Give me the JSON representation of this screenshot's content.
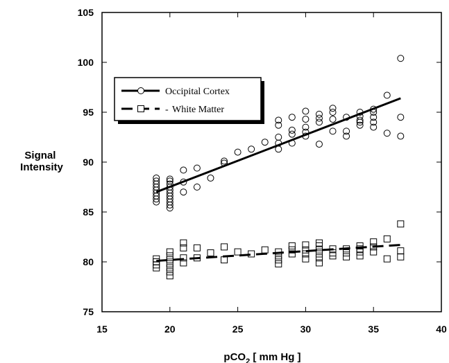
{
  "chart_data": {
    "type": "scatter",
    "title": "",
    "xlabel": "pCO2 [ mm Hg ]",
    "xlabel_parts": {
      "prefix": "pCO",
      "sub": "2",
      "suffix": " [ mm Hg ]"
    },
    "ylabel": "Signal Intensity",
    "ylabel_lines": [
      "Signal",
      "Intensity"
    ],
    "xlim": [
      15,
      40
    ],
    "ylim": [
      75,
      105
    ],
    "xticks": [
      15,
      20,
      25,
      30,
      35,
      40
    ],
    "yticks": [
      75,
      80,
      85,
      90,
      95,
      100,
      105
    ],
    "grid": false,
    "legend": {
      "placement": "top-left"
    },
    "series": [
      {
        "name": "Occipital Cortex",
        "marker": "circle",
        "line_style": "solid",
        "fit": [
          [
            19,
            87.0
          ],
          [
            37,
            96.4
          ]
        ],
        "points": [
          [
            19,
            86.0
          ],
          [
            19,
            86.3
          ],
          [
            19,
            86.6
          ],
          [
            19,
            86.9
          ],
          [
            19,
            87.2
          ],
          [
            19,
            87.5
          ],
          [
            19,
            87.8
          ],
          [
            19,
            88.1
          ],
          [
            19,
            88.4
          ],
          [
            20,
            85.4
          ],
          [
            20,
            85.7
          ],
          [
            20,
            86.0
          ],
          [
            20,
            86.3
          ],
          [
            20,
            86.6
          ],
          [
            20,
            86.9
          ],
          [
            20,
            87.2
          ],
          [
            20,
            87.5
          ],
          [
            20,
            87.8
          ],
          [
            20,
            88.1
          ],
          [
            20,
            88.3
          ],
          [
            21,
            87.0
          ],
          [
            21,
            88.0
          ],
          [
            21,
            89.2
          ],
          [
            22,
            87.5
          ],
          [
            22,
            89.4
          ],
          [
            23,
            88.4
          ],
          [
            24,
            89.9
          ],
          [
            24,
            90.1
          ],
          [
            25,
            91.0
          ],
          [
            26,
            91.3
          ],
          [
            27,
            92.0
          ],
          [
            28,
            91.3
          ],
          [
            28,
            91.9
          ],
          [
            28,
            92.5
          ],
          [
            28,
            93.7
          ],
          [
            28,
            94.2
          ],
          [
            29,
            91.9
          ],
          [
            29,
            92.8
          ],
          [
            29,
            93.2
          ],
          [
            29,
            94.5
          ],
          [
            30,
            92.6
          ],
          [
            30,
            93.0
          ],
          [
            30,
            93.5
          ],
          [
            30,
            94.3
          ],
          [
            30,
            95.1
          ],
          [
            31,
            91.8
          ],
          [
            31,
            94.0
          ],
          [
            31,
            94.4
          ],
          [
            31,
            94.8
          ],
          [
            32,
            93.1
          ],
          [
            32,
            94.3
          ],
          [
            32,
            95.0
          ],
          [
            32,
            95.4
          ],
          [
            33,
            92.6
          ],
          [
            33,
            93.1
          ],
          [
            33,
            94.5
          ],
          [
            34,
            93.7
          ],
          [
            34,
            94.0
          ],
          [
            34,
            94.2
          ],
          [
            34,
            94.6
          ],
          [
            34,
            95.0
          ],
          [
            35,
            93.5
          ],
          [
            35,
            94.0
          ],
          [
            35,
            94.5
          ],
          [
            35,
            95.0
          ],
          [
            35,
            95.3
          ],
          [
            36,
            92.9
          ],
          [
            36,
            96.7
          ],
          [
            37,
            92.6
          ],
          [
            37,
            94.5
          ],
          [
            37,
            100.4
          ]
        ]
      },
      {
        "name": "White Matter",
        "marker": "square",
        "line_style": "dashed",
        "fit": [
          [
            19,
            80.1
          ],
          [
            37,
            81.7
          ]
        ],
        "points": [
          [
            19,
            79.4
          ],
          [
            19,
            79.7
          ],
          [
            19,
            80.0
          ],
          [
            19,
            80.3
          ],
          [
            20,
            78.6
          ],
          [
            20,
            79.0
          ],
          [
            20,
            79.4
          ],
          [
            20,
            79.8
          ],
          [
            20,
            80.2
          ],
          [
            20,
            80.6
          ],
          [
            20,
            81.0
          ],
          [
            21,
            79.9
          ],
          [
            21,
            80.4
          ],
          [
            21,
            81.4
          ],
          [
            21,
            81.9
          ],
          [
            22,
            80.4
          ],
          [
            22,
            81.4
          ],
          [
            23,
            80.9
          ],
          [
            24,
            80.2
          ],
          [
            24,
            81.5
          ],
          [
            25,
            81.0
          ],
          [
            26,
            80.8
          ],
          [
            27,
            81.2
          ],
          [
            28,
            79.8
          ],
          [
            28,
            80.2
          ],
          [
            28,
            80.6
          ],
          [
            28,
            81.0
          ],
          [
            29,
            80.8
          ],
          [
            29,
            81.2
          ],
          [
            29,
            81.6
          ],
          [
            30,
            80.3
          ],
          [
            30,
            80.8
          ],
          [
            30,
            81.2
          ],
          [
            30,
            81.7
          ],
          [
            31,
            79.9
          ],
          [
            31,
            80.4
          ],
          [
            31,
            80.8
          ],
          [
            31,
            81.2
          ],
          [
            31,
            81.6
          ],
          [
            31,
            81.9
          ],
          [
            32,
            80.6
          ],
          [
            32,
            80.9
          ],
          [
            32,
            81.3
          ],
          [
            33,
            80.5
          ],
          [
            33,
            80.9
          ],
          [
            33,
            81.3
          ],
          [
            34,
            80.6
          ],
          [
            34,
            81.0
          ],
          [
            34,
            81.3
          ],
          [
            34,
            81.6
          ],
          [
            35,
            81.0
          ],
          [
            35,
            81.5
          ],
          [
            35,
            82.0
          ],
          [
            36,
            80.3
          ],
          [
            36,
            82.3
          ],
          [
            37,
            80.5
          ],
          [
            37,
            81.1
          ],
          [
            37,
            83.8
          ]
        ]
      }
    ]
  }
}
